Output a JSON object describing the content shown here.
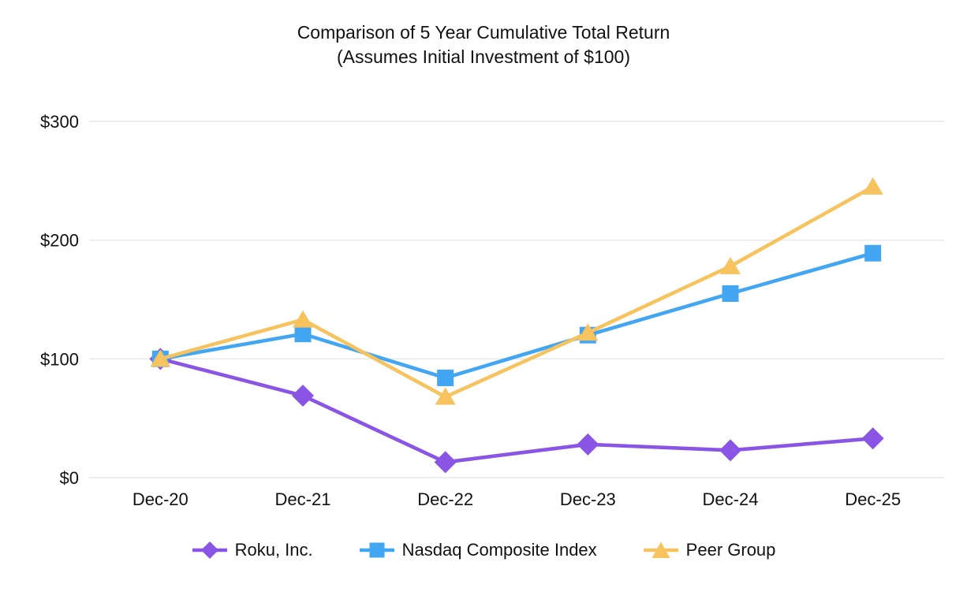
{
  "chart_data": {
    "type": "line",
    "title": "Comparison of 5 Year Cumulative Total Return",
    "subtitle": "(Assumes Initial Investment of $100)",
    "xlabel": "",
    "ylabel": "",
    "x": [
      "Dec-20",
      "Dec-21",
      "Dec-22",
      "Dec-23",
      "Dec-24",
      "Dec-25"
    ],
    "series": [
      {
        "id": "roku",
        "name": "Roku, Inc.",
        "marker": "diamond",
        "color": "#8A54E4",
        "values": [
          100,
          69,
          13,
          28,
          23,
          33
        ]
      },
      {
        "id": "nasdaq",
        "name": "Nasdaq Composite Index",
        "marker": "square",
        "color": "#42A6F2",
        "values": [
          100,
          121,
          84,
          120,
          155,
          189
        ]
      },
      {
        "id": "peer",
        "name": "Peer Group",
        "marker": "triangle",
        "color": "#F6C35F",
        "values": [
          100,
          133,
          68,
          122,
          178,
          245
        ]
      }
    ],
    "ylim": [
      0,
      300
    ],
    "yticks": [
      0,
      100,
      200,
      300
    ],
    "ytick_labels": [
      "$0",
      "$100",
      "$200",
      "$300"
    ],
    "grid": "horizontal",
    "legend_position": "bottom"
  },
  "colors": {
    "gridline": "#E7E7E7",
    "text": "#111111"
  }
}
